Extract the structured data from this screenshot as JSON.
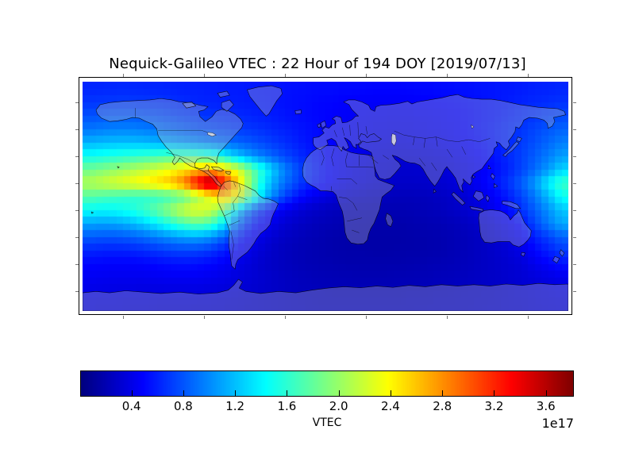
{
  "title": "Nequick-Galileo VTEC : 22 Hour of 194 DOY [2019/07/13]",
  "colorbar": {
    "label": "VTEC",
    "offset_text": "1e17",
    "tick_labels": [
      "0.4",
      "0.8",
      "1.2",
      "1.6",
      "2.0",
      "2.4",
      "2.8",
      "3.2",
      "3.6"
    ],
    "tick_values": [
      0.4,
      0.8,
      1.2,
      1.6,
      2.0,
      2.4,
      2.8,
      3.2,
      3.6
    ],
    "vmin": 0.01,
    "vmax": 3.81,
    "colormap": "jet",
    "orientation": "horizontal"
  },
  "chart_data": {
    "type": "heatmap",
    "title": "Nequick-Galileo VTEC : 22 Hour of 194 DOY [2019/07/13]",
    "model": "Nequick-Galileo",
    "quantity": "VTEC",
    "hour": 22,
    "day_of_year": 194,
    "date": "2019/07/13",
    "projection": "equirectangular",
    "colormap": "jet",
    "x": "longitude_deg",
    "y": "latitude_deg",
    "lon_range": [
      -180,
      180
    ],
    "lat_range": [
      -85,
      85
    ],
    "value_scale": "1e17",
    "vmin_1e17": 0.01,
    "vmax_1e17": 3.81,
    "peak": {
      "lon": -85,
      "lat": 10,
      "value_1e17": 3.78
    },
    "graticule": {
      "meridians": [
        -150,
        -90,
        -30,
        30,
        90,
        150
      ],
      "parallels": [
        -70,
        -50,
        -30,
        -10,
        10,
        30,
        50,
        70
      ]
    },
    "lon_centers": [
      -175,
      -165,
      -155,
      -145,
      -135,
      -125,
      -115,
      -105,
      -95,
      -85,
      -75,
      -65,
      -55,
      -45,
      -35,
      -25,
      -15,
      -5,
      5,
      15,
      25,
      35,
      45,
      55,
      65,
      75,
      85,
      95,
      105,
      115,
      125,
      135,
      145,
      155,
      165,
      175
    ],
    "lat_centers": [
      80,
      70,
      60,
      50,
      40,
      30,
      20,
      10,
      0,
      -10,
      -20,
      -30,
      -40,
      -50,
      -60,
      -70,
      -80
    ],
    "values_1e17": [
      [
        0.62,
        0.62,
        0.63,
        0.63,
        0.62,
        0.62,
        0.61,
        0.6,
        0.6,
        0.59,
        0.58,
        0.58,
        0.57,
        0.56,
        0.55,
        0.54,
        0.53,
        0.52,
        0.52,
        0.51,
        0.51,
        0.5,
        0.5,
        0.5,
        0.51,
        0.51,
        0.52,
        0.53,
        0.54,
        0.55,
        0.56,
        0.57,
        0.58,
        0.6,
        0.61,
        0.62
      ],
      [
        0.68,
        0.69,
        0.7,
        0.7,
        0.69,
        0.68,
        0.66,
        0.64,
        0.62,
        0.61,
        0.6,
        0.59,
        0.58,
        0.57,
        0.55,
        0.53,
        0.52,
        0.5,
        0.49,
        0.48,
        0.47,
        0.46,
        0.46,
        0.46,
        0.47,
        0.48,
        0.49,
        0.5,
        0.52,
        0.54,
        0.56,
        0.58,
        0.61,
        0.63,
        0.65,
        0.67
      ],
      [
        0.78,
        0.8,
        0.82,
        0.82,
        0.8,
        0.78,
        0.75,
        0.72,
        0.69,
        0.67,
        0.65,
        0.63,
        0.61,
        0.59,
        0.57,
        0.54,
        0.52,
        0.5,
        0.48,
        0.46,
        0.45,
        0.44,
        0.43,
        0.43,
        0.44,
        0.45,
        0.46,
        0.48,
        0.5,
        0.53,
        0.56,
        0.6,
        0.64,
        0.68,
        0.72,
        0.75
      ],
      [
        0.92,
        0.95,
        0.97,
        0.97,
        0.95,
        0.92,
        0.88,
        0.84,
        0.8,
        0.77,
        0.74,
        0.71,
        0.68,
        0.65,
        0.61,
        0.58,
        0.54,
        0.51,
        0.48,
        0.46,
        0.44,
        0.42,
        0.41,
        0.41,
        0.42,
        0.43,
        0.45,
        0.47,
        0.5,
        0.54,
        0.58,
        0.63,
        0.68,
        0.74,
        0.8,
        0.86
      ],
      [
        1.15,
        1.18,
        1.2,
        1.2,
        1.18,
        1.14,
        1.1,
        1.05,
        1.0,
        0.95,
        0.9,
        0.85,
        0.8,
        0.74,
        0.68,
        0.62,
        0.56,
        0.52,
        0.48,
        0.45,
        0.42,
        0.4,
        0.39,
        0.38,
        0.39,
        0.4,
        0.42,
        0.45,
        0.48,
        0.52,
        0.57,
        0.63,
        0.7,
        0.78,
        0.87,
        0.96
      ],
      [
        1.48,
        1.52,
        1.56,
        1.6,
        1.64,
        1.68,
        1.72,
        1.74,
        1.72,
        1.62,
        1.42,
        1.22,
        1.05,
        0.92,
        0.8,
        0.7,
        0.61,
        0.54,
        0.48,
        0.44,
        0.4,
        0.37,
        0.35,
        0.34,
        0.34,
        0.35,
        0.37,
        0.4,
        0.44,
        0.49,
        0.55,
        0.63,
        0.72,
        0.83,
        0.95,
        1.08
      ],
      [
        1.85,
        1.92,
        2.0,
        2.08,
        2.16,
        2.25,
        2.35,
        2.48,
        2.62,
        2.72,
        2.55,
        2.25,
        1.85,
        1.45,
        1.1,
        0.85,
        0.68,
        0.56,
        0.48,
        0.42,
        0.38,
        0.34,
        0.32,
        0.3,
        0.3,
        0.31,
        0.33,
        0.36,
        0.4,
        0.45,
        0.52,
        0.61,
        0.73,
        0.88,
        1.06,
        1.28
      ],
      [
        2.1,
        2.18,
        2.26,
        2.34,
        2.42,
        2.52,
        2.64,
        2.9,
        3.4,
        3.78,
        3.2,
        2.55,
        1.9,
        1.35,
        1.0,
        0.8,
        0.64,
        0.54,
        0.46,
        0.4,
        0.36,
        0.32,
        0.3,
        0.28,
        0.28,
        0.29,
        0.31,
        0.34,
        0.39,
        0.46,
        0.55,
        0.67,
        0.84,
        1.06,
        1.38,
        1.65
      ],
      [
        1.75,
        1.7,
        1.66,
        1.62,
        1.6,
        1.62,
        1.68,
        1.8,
        2.05,
        2.35,
        2.6,
        2.3,
        1.7,
        1.2,
        0.85,
        0.62,
        0.48,
        0.4,
        0.34,
        0.3,
        0.27,
        0.25,
        0.24,
        0.23,
        0.23,
        0.24,
        0.26,
        0.29,
        0.33,
        0.39,
        0.47,
        0.58,
        0.73,
        0.93,
        1.18,
        1.48
      ],
      [
        1.45,
        1.42,
        1.45,
        1.52,
        1.64,
        1.8,
        2.0,
        2.2,
        2.3,
        2.2,
        1.85,
        1.25,
        0.85,
        0.6,
        0.45,
        0.37,
        0.31,
        0.27,
        0.24,
        0.22,
        0.21,
        0.2,
        0.2,
        0.2,
        0.21,
        0.22,
        0.24,
        0.27,
        0.31,
        0.36,
        0.43,
        0.53,
        0.66,
        0.83,
        1.02,
        1.22
      ],
      [
        1.1,
        1.08,
        1.1,
        1.16,
        1.26,
        1.4,
        1.56,
        1.72,
        1.8,
        1.7,
        1.35,
        0.92,
        0.62,
        0.46,
        0.36,
        0.3,
        0.26,
        0.23,
        0.21,
        0.2,
        0.19,
        0.18,
        0.18,
        0.18,
        0.19,
        0.2,
        0.21,
        0.23,
        0.26,
        0.3,
        0.36,
        0.43,
        0.53,
        0.75,
        0.95,
        1.12
      ],
      [
        0.82,
        0.8,
        0.8,
        0.83,
        0.88,
        0.95,
        1.02,
        1.08,
        1.1,
        1.02,
        0.85,
        0.62,
        0.46,
        0.36,
        0.29,
        0.25,
        0.22,
        0.2,
        0.18,
        0.17,
        0.16,
        0.16,
        0.16,
        0.16,
        0.17,
        0.18,
        0.19,
        0.21,
        0.23,
        0.26,
        0.31,
        0.37,
        0.44,
        0.6,
        0.72,
        0.85
      ],
      [
        0.62,
        0.6,
        0.6,
        0.61,
        0.64,
        0.68,
        0.72,
        0.74,
        0.73,
        0.68,
        0.58,
        0.47,
        0.38,
        0.31,
        0.26,
        0.23,
        0.21,
        0.19,
        0.18,
        0.17,
        0.17,
        0.16,
        0.16,
        0.17,
        0.17,
        0.18,
        0.19,
        0.21,
        0.23,
        0.26,
        0.29,
        0.33,
        0.39,
        0.5,
        0.6,
        0.7
      ],
      [
        0.5,
        0.49,
        0.48,
        0.48,
        0.49,
        0.51,
        0.53,
        0.54,
        0.53,
        0.5,
        0.45,
        0.39,
        0.34,
        0.29,
        0.26,
        0.23,
        0.21,
        0.2,
        0.19,
        0.18,
        0.18,
        0.18,
        0.18,
        0.18,
        0.19,
        0.2,
        0.21,
        0.22,
        0.24,
        0.26,
        0.28,
        0.31,
        0.34,
        0.42,
        0.48,
        0.55
      ],
      [
        0.44,
        0.43,
        0.42,
        0.42,
        0.42,
        0.43,
        0.44,
        0.44,
        0.44,
        0.42,
        0.4,
        0.36,
        0.33,
        0.3,
        0.27,
        0.25,
        0.23,
        0.22,
        0.21,
        0.21,
        0.2,
        0.2,
        0.2,
        0.21,
        0.21,
        0.22,
        0.23,
        0.24,
        0.25,
        0.27,
        0.28,
        0.3,
        0.32,
        0.35,
        0.38,
        0.41
      ],
      [
        0.4,
        0.39,
        0.38,
        0.38,
        0.37,
        0.37,
        0.37,
        0.37,
        0.37,
        0.36,
        0.35,
        0.33,
        0.31,
        0.29,
        0.27,
        0.25,
        0.24,
        0.23,
        0.22,
        0.22,
        0.22,
        0.22,
        0.22,
        0.22,
        0.23,
        0.23,
        0.24,
        0.25,
        0.26,
        0.27,
        0.28,
        0.3,
        0.32,
        0.34,
        0.36,
        0.38
      ],
      [
        0.36,
        0.35,
        0.35,
        0.34,
        0.34,
        0.33,
        0.33,
        0.33,
        0.32,
        0.32,
        0.31,
        0.3,
        0.29,
        0.28,
        0.27,
        0.26,
        0.25,
        0.24,
        0.24,
        0.24,
        0.24,
        0.24,
        0.24,
        0.24,
        0.25,
        0.25,
        0.26,
        0.26,
        0.27,
        0.28,
        0.29,
        0.3,
        0.31,
        0.33,
        0.34,
        0.35
      ]
    ]
  }
}
